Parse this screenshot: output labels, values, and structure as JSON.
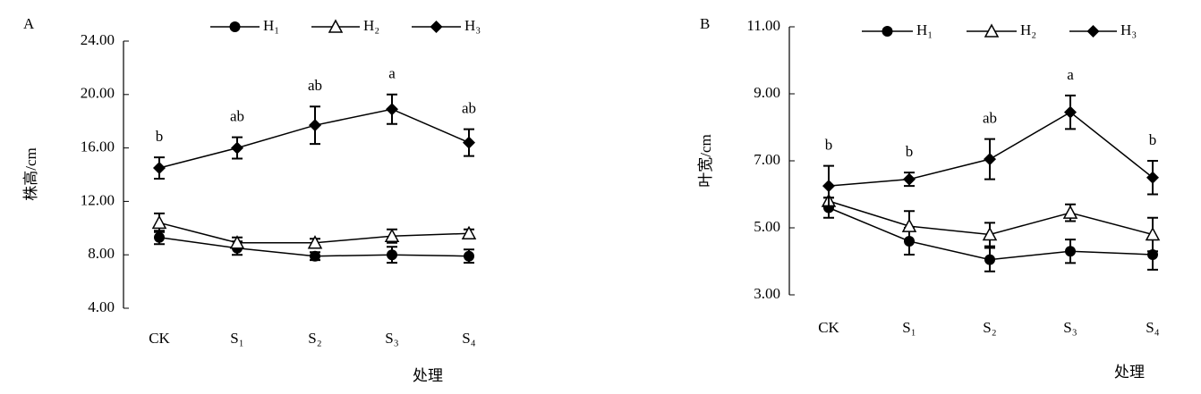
{
  "chart_data": [
    {
      "type": "line",
      "panel_label": "A",
      "ylabel": "株高/cm",
      "xlabel": "处理",
      "categories": [
        "CK",
        "S₁",
        "S₂",
        "S₃",
        "S₄"
      ],
      "ylim": [
        4,
        24
      ],
      "yticks": [
        {
          "value": 4,
          "label": "4.00"
        },
        {
          "value": 8,
          "label": "8.00"
        },
        {
          "value": 12,
          "label": "12.00"
        },
        {
          "value": 16,
          "label": "16.00"
        },
        {
          "value": 20,
          "label": "20.00"
        },
        {
          "value": 24,
          "label": "24.00"
        }
      ],
      "legend": "top",
      "series": [
        {
          "name": "H₁",
          "color": "#000000",
          "marker": "circle",
          "values": [
            9.3,
            8.5,
            7.9,
            8.0,
            7.9
          ],
          "errors": [
            0.5,
            0.5,
            0.3,
            0.6,
            0.5
          ]
        },
        {
          "name": "H₂",
          "color": "#000000",
          "marker": "triangle",
          "values": [
            10.4,
            8.9,
            8.9,
            9.4,
            9.6
          ],
          "errors": [
            0.7,
            0.4,
            0.3,
            0.5,
            0.3
          ]
        },
        {
          "name": "H₃",
          "color": "#000000",
          "marker": "diamond",
          "values": [
            14.5,
            16.0,
            17.7,
            18.9,
            16.4
          ],
          "errors": [
            0.8,
            0.8,
            1.4,
            1.1,
            1.0
          ]
        }
      ],
      "annotations": [
        "b",
        "ab",
        "ab",
        "a",
        "ab"
      ]
    },
    {
      "type": "line",
      "panel_label": "B",
      "ylabel": "叶宽/cm",
      "xlabel": "处理",
      "categories": [
        "CK",
        "S₁",
        "S₂",
        "S₃",
        "S₄"
      ],
      "ylim": [
        3,
        11
      ],
      "yticks": [
        {
          "value": 3,
          "label": "3.00"
        },
        {
          "value": 5,
          "label": "5.00"
        },
        {
          "value": 7,
          "label": "7.00"
        },
        {
          "value": 9,
          "label": "9.00"
        },
        {
          "value": 11,
          "label": "11.00"
        }
      ],
      "legend": "top",
      "series": [
        {
          "name": "H₁",
          "color": "#000000",
          "marker": "circle",
          "values": [
            5.6,
            4.6,
            4.05,
            4.3,
            4.2
          ],
          "errors": [
            0.3,
            0.4,
            0.35,
            0.35,
            0.45
          ]
        },
        {
          "name": "H₂",
          "color": "#000000",
          "marker": "triangle",
          "values": [
            5.8,
            5.05,
            4.8,
            5.45,
            4.8
          ],
          "errors": [
            0.1,
            0.45,
            0.35,
            0.25,
            0.5
          ]
        },
        {
          "name": "H₃",
          "color": "#000000",
          "marker": "diamond",
          "values": [
            6.25,
            6.45,
            7.05,
            8.45,
            6.5
          ],
          "errors": [
            0.6,
            0.2,
            0.6,
            0.5,
            0.5
          ]
        }
      ],
      "annotations": [
        "b",
        "b",
        "ab",
        "a",
        "b"
      ]
    }
  ]
}
